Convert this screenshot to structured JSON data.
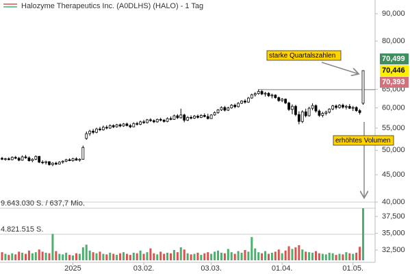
{
  "chart_data": {
    "type": "candlestick",
    "title": "Halozyme Therapeutics Inc. (A0DLHS) (HALO) - 1 Tag",
    "log_scale": true,
    "ylim": [
      40,
      90
    ],
    "yticks": [
      {
        "value": 90,
        "label": "90,000"
      },
      {
        "value": 80,
        "label": "80,000"
      },
      {
        "value": 65,
        "label": "65,000"
      },
      {
        "value": 60,
        "label": "60,000"
      },
      {
        "value": 55,
        "label": "55,000"
      },
      {
        "value": 50,
        "label": "50,000"
      },
      {
        "value": 45,
        "label": "45,000"
      },
      {
        "value": 40,
        "label": "40,000"
      }
    ],
    "y2lim": [
      30.97,
      39.64
    ],
    "y2ticks": [
      {
        "value": 37.5,
        "label": "37,500"
      },
      {
        "value": 35,
        "label": "35,000"
      },
      {
        "value": 32.5,
        "label": "32,500"
      }
    ],
    "colors": {
      "up": "#ffffff",
      "down": "#000000",
      "volume_up": "#4caf6e",
      "volume_down": "#d9534f"
    },
    "categories": [
      null,
      null,
      null,
      null,
      null,
      null,
      null,
      null,
      null,
      null,
      null,
      null,
      null,
      null,
      null,
      null,
      null,
      null,
      null,
      null,
      null,
      "2025",
      null,
      null,
      null,
      null,
      null,
      null,
      null,
      null,
      null,
      null,
      null,
      null,
      null,
      null,
      null,
      null,
      null,
      null,
      null,
      null,
      "03.02.",
      null,
      null,
      null,
      null,
      null,
      null,
      null,
      null,
      null,
      null,
      null,
      null,
      null,
      null,
      null,
      null,
      null,
      null,
      null,
      "03.03.",
      null,
      null,
      null,
      null,
      null,
      null,
      null,
      null,
      null,
      null,
      null,
      null,
      null,
      null,
      null,
      null,
      null,
      null,
      null,
      null,
      "01.04.",
      null,
      null,
      null,
      null,
      null,
      null,
      null,
      null,
      null,
      null,
      null,
      null,
      null,
      null,
      null,
      null,
      null,
      null,
      null,
      null,
      "01.05.",
      null,
      null,
      null
    ],
    "ohlc": [
      [
        48.3,
        48.6,
        47.9,
        48.1
      ],
      [
        48.1,
        48.4,
        47.8,
        48.2
      ],
      [
        48.2,
        48.5,
        47.9,
        48.0
      ],
      [
        48.0,
        48.7,
        47.9,
        48.5
      ],
      [
        48.5,
        48.8,
        48.1,
        48.3
      ],
      [
        48.3,
        48.6,
        47.7,
        47.9
      ],
      [
        47.9,
        48.9,
        47.8,
        48.6
      ],
      [
        48.6,
        49.0,
        48.2,
        48.4
      ],
      [
        48.4,
        48.7,
        47.6,
        47.8
      ],
      [
        47.8,
        48.3,
        47.5,
        48.1
      ],
      [
        48.1,
        48.9,
        47.9,
        48.7
      ],
      [
        48.7,
        48.8,
        47.3,
        47.5
      ],
      [
        47.5,
        47.9,
        47.1,
        47.4
      ],
      [
        47.4,
        47.8,
        47.0,
        47.6
      ],
      [
        47.6,
        47.7,
        46.8,
        47.0
      ],
      [
        47.0,
        47.5,
        46.7,
        47.3
      ],
      [
        47.3,
        47.6,
        46.9,
        47.1
      ],
      [
        47.1,
        47.7,
        47.0,
        47.5
      ],
      [
        47.5,
        47.9,
        47.2,
        47.7
      ],
      [
        47.7,
        48.2,
        47.5,
        48.0
      ],
      [
        48.0,
        48.3,
        47.7,
        47.8
      ],
      [
        47.8,
        48.4,
        47.6,
        48.2
      ],
      [
        48.2,
        48.5,
        47.8,
        47.9
      ],
      [
        47.9,
        48.3,
        47.6,
        48.1
      ],
      [
        48.1,
        51.0,
        48.0,
        50.6
      ],
      [
        52.6,
        54.2,
        52.3,
        53.7
      ],
      [
        53.7,
        54.6,
        53.2,
        54.3
      ],
      [
        54.3,
        54.8,
        53.6,
        54.0
      ],
      [
        54.0,
        55.1,
        53.8,
        54.8
      ],
      [
        54.8,
        55.3,
        54.3,
        54.6
      ],
      [
        54.6,
        55.6,
        54.4,
        55.2
      ],
      [
        55.2,
        55.7,
        54.7,
        55.0
      ],
      [
        55.0,
        55.9,
        54.8,
        55.6
      ],
      [
        55.6,
        55.9,
        55.0,
        55.3
      ],
      [
        55.3,
        56.0,
        55.1,
        55.8
      ],
      [
        55.8,
        56.1,
        55.2,
        55.5
      ],
      [
        55.5,
        56.2,
        55.3,
        56.0
      ],
      [
        56.0,
        56.3,
        55.4,
        55.6
      ],
      [
        55.6,
        56.0,
        55.0,
        55.3
      ],
      [
        55.3,
        56.4,
        55.2,
        56.1
      ],
      [
        56.1,
        56.5,
        55.6,
        55.9
      ],
      [
        55.9,
        56.8,
        55.7,
        56.5
      ],
      [
        56.5,
        57.0,
        56.0,
        56.3
      ],
      [
        56.3,
        57.2,
        56.1,
        57.0
      ],
      [
        57.0,
        57.4,
        56.5,
        56.8
      ],
      [
        56.8,
        57.1,
        56.2,
        56.5
      ],
      [
        56.5,
        57.3,
        56.3,
        57.1
      ],
      [
        57.1,
        57.5,
        56.6,
        56.9
      ],
      [
        56.9,
        57.2,
        56.3,
        56.6
      ],
      [
        56.6,
        57.6,
        56.4,
        57.3
      ],
      [
        57.3,
        57.8,
        56.9,
        57.1
      ],
      [
        57.1,
        58.3,
        57.0,
        58.0
      ],
      [
        58.0,
        58.4,
        57.2,
        57.5
      ],
      [
        57.5,
        59.8,
        57.3,
        58.2
      ],
      [
        58.2,
        58.5,
        56.4,
        56.9
      ],
      [
        56.9,
        57.9,
        56.7,
        57.6
      ],
      [
        57.6,
        58.1,
        57.1,
        57.4
      ],
      [
        57.4,
        58.2,
        57.2,
        57.9
      ],
      [
        57.9,
        58.3,
        57.3,
        57.6
      ],
      [
        57.6,
        58.4,
        57.4,
        58.1
      ],
      [
        58.1,
        58.6,
        57.6,
        57.8
      ],
      [
        57.8,
        58.5,
        57.1,
        57.3
      ],
      [
        57.3,
        58.4,
        57.2,
        58.2
      ],
      [
        58.2,
        59.1,
        58.0,
        58.8
      ],
      [
        58.8,
        59.7,
        58.5,
        59.5
      ],
      [
        59.5,
        60.4,
        59.2,
        60.1
      ],
      [
        60.1,
        60.5,
        59.1,
        59.4
      ],
      [
        59.4,
        60.3,
        59.2,
        60.0
      ],
      [
        60.0,
        61.0,
        59.8,
        60.7
      ],
      [
        60.7,
        61.1,
        59.9,
        60.3
      ],
      [
        60.3,
        61.5,
        60.1,
        61.2
      ],
      [
        61.2,
        62.0,
        61.0,
        61.8
      ],
      [
        61.8,
        62.3,
        61.1,
        61.5
      ],
      [
        61.5,
        62.9,
        61.3,
        62.6
      ],
      [
        62.6,
        63.8,
        62.4,
        63.5
      ],
      [
        63.5,
        64.2,
        63.0,
        63.8
      ],
      [
        63.8,
        65.0,
        63.5,
        64.4
      ],
      [
        64.4,
        64.8,
        63.4,
        63.7
      ],
      [
        63.7,
        64.3,
        63.0,
        63.9
      ],
      [
        63.9,
        64.2,
        62.9,
        63.2
      ],
      [
        63.2,
        63.8,
        62.5,
        63.4
      ],
      [
        63.4,
        63.6,
        62.4,
        62.7
      ],
      [
        62.7,
        63.0,
        61.6,
        61.9
      ],
      [
        61.9,
        62.6,
        61.5,
        62.3
      ],
      [
        62.3,
        62.5,
        61.0,
        61.3
      ],
      [
        61.3,
        61.6,
        59.2,
        59.6
      ],
      [
        59.6,
        60.9,
        58.4,
        60.4
      ],
      [
        60.4,
        60.8,
        57.9,
        58.3
      ],
      [
        58.3,
        59.1,
        55.9,
        56.6
      ],
      [
        56.6,
        59.4,
        56.2,
        59.0
      ],
      [
        59.0,
        59.8,
        57.6,
        58.0
      ],
      [
        58.0,
        60.3,
        57.8,
        59.9
      ],
      [
        59.9,
        61.2,
        59.4,
        60.6
      ],
      [
        60.6,
        60.9,
        58.8,
        59.2
      ],
      [
        59.2,
        59.6,
        57.7,
        58.1
      ],
      [
        58.1,
        59.0,
        57.6,
        58.6
      ],
      [
        58.6,
        59.3,
        58.1,
        58.9
      ],
      [
        58.9,
        59.9,
        58.6,
        59.7
      ],
      [
        59.7,
        60.8,
        59.4,
        60.5
      ],
      [
        60.5,
        60.9,
        59.6,
        60.1
      ],
      [
        60.1,
        61.0,
        59.8,
        60.7
      ],
      [
        60.7,
        61.1,
        59.8,
        60.2
      ],
      [
        60.2,
        60.8,
        59.6,
        60.4
      ],
      [
        60.4,
        61.0,
        59.7,
        59.9
      ],
      [
        59.9,
        60.5,
        59.2,
        60.1
      ],
      [
        60.1,
        60.4,
        59.0,
        59.3
      ],
      [
        59.3,
        59.7,
        58.3,
        58.8
      ],
      [
        61.2,
        70.499,
        60.8,
        70.446
      ]
    ],
    "volume": {
      "lim": [
        0,
        9643030
      ],
      "levels": [
        {
          "value": 9643030,
          "label": "9.643.030 S. / 637,7 Mio."
        },
        {
          "value": 4821515,
          "label": "4.821.515 S."
        }
      ],
      "values": [
        1500000,
        1200000,
        1000000,
        1300000,
        1100000,
        1600000,
        1400000,
        1200000,
        1800000,
        1300000,
        1500000,
        2000000,
        1600000,
        1400000,
        1300000,
        4900000,
        1700000,
        1200000,
        1100000,
        1400000,
        1000000,
        900000,
        1300000,
        1200000,
        2400000,
        2900000,
        1800000,
        1500000,
        1300000,
        1600000,
        1200000,
        1100000,
        1400000,
        1200000,
        1000000,
        1300000,
        1500000,
        1200000,
        1000000,
        1400000,
        1300000,
        1800000,
        1200000,
        1500000,
        2200000,
        1300000,
        1100000,
        1600000,
        1200000,
        1400000,
        1300000,
        1900000,
        1500000,
        2400000,
        2000000,
        1300000,
        1100000,
        1200000,
        1400000,
        1000000,
        1300000,
        1500000,
        1200000,
        1600000,
        1800000,
        1400000,
        1300000,
        2100000,
        1500000,
        1200000,
        1700000,
        1400000,
        1900000,
        1600000,
        4300000,
        2200000,
        1500000,
        1300000,
        1700000,
        1200000,
        1400000,
        1600000,
        2000000,
        1300000,
        1800000,
        2600000,
        2100000,
        2400000,
        2800000,
        2000000,
        1600000,
        1500000,
        1400000,
        1700000,
        1300000,
        1200000,
        1100000,
        1400000,
        1300000,
        1000000,
        1200000,
        1100000,
        1500000,
        1300000,
        1200000,
        1400000,
        2500000,
        9643030
      ]
    },
    "level_line": {
      "value": 64.9,
      "from": 76
    },
    "price_tags": [
      {
        "value": 70.499,
        "label": "70,499",
        "color": "#3e8e5e"
      },
      {
        "value": 70.446,
        "label": "70,446",
        "color": "#ffee00"
      },
      {
        "value": 70.393,
        "label": "70,393",
        "color": "#d4707b"
      }
    ],
    "annotations": [
      {
        "text": "starke Quartalszahlen"
      },
      {
        "text": "erhöhtes Volumen"
      }
    ]
  }
}
